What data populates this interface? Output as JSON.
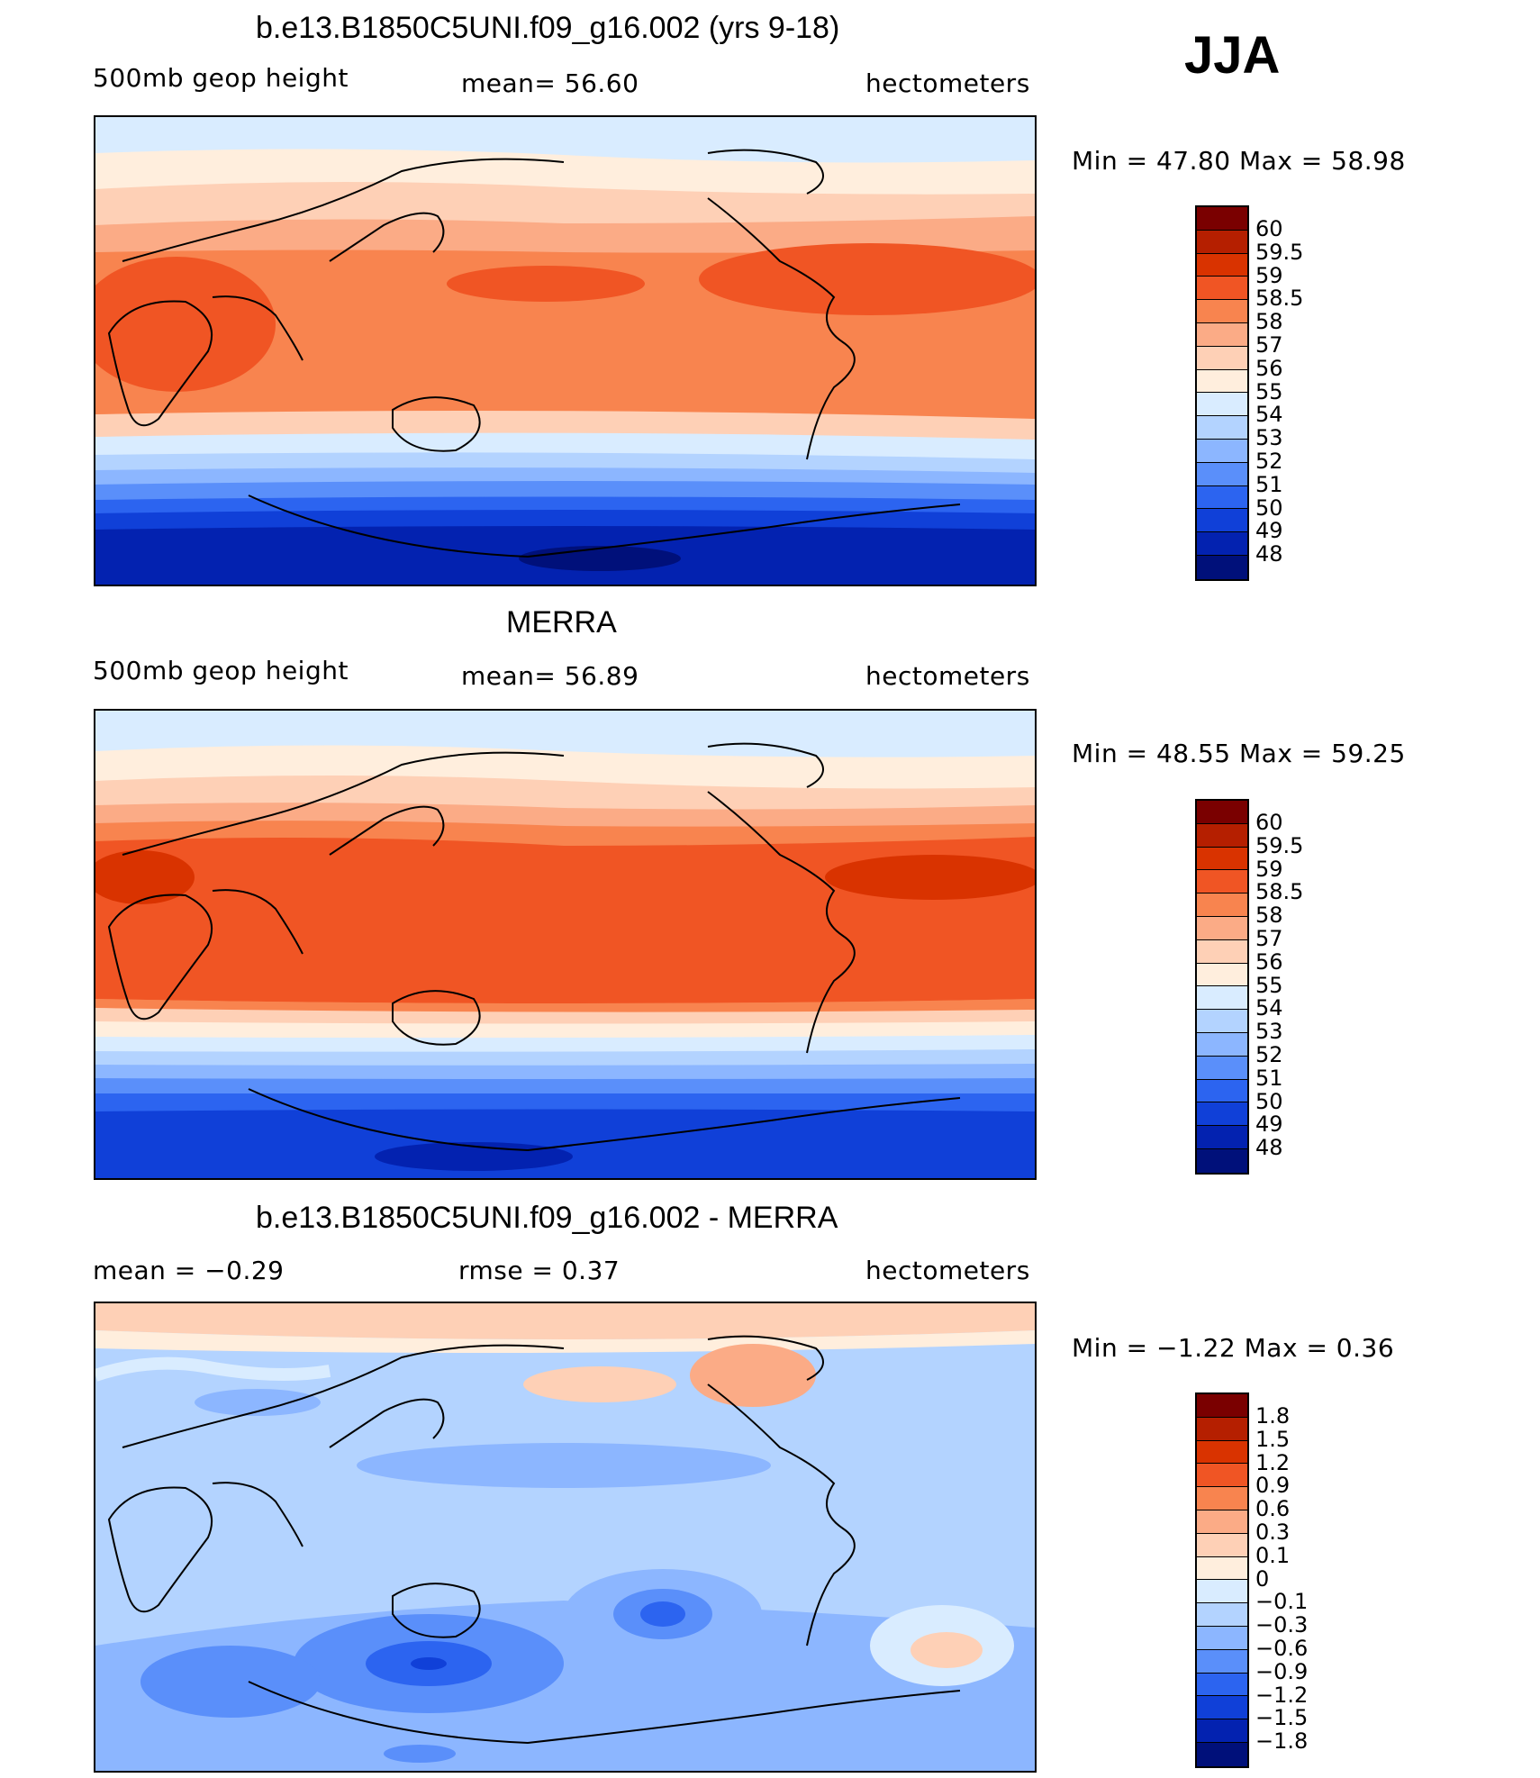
{
  "season": "JJA",
  "panels": [
    {
      "title": "b.e13.B1850C5UNI.f09_g16.002 (yrs 9-18)",
      "left_label": "500mb  geop  height",
      "mid_label": "mean=   56.60",
      "right_label": "hectometers",
      "minmax": "Min  =    47.80  Max  =    58.98"
    },
    {
      "title": "MERRA",
      "left_label": "500mb  geop  height",
      "mid_label": "mean=   56.89",
      "right_label": "hectometers",
      "minmax": "Min  =    48.55  Max  =    59.25"
    },
    {
      "title": "b.e13.B1850C5UNI.f09_g16.002 - MERRA",
      "left_label": "mean  =    −0.29",
      "mid_label": "rmse  =     0.37",
      "right_label": "hectometers",
      "minmax": "Min  =    −1.22  Max  =     0.36"
    }
  ],
  "colorbar_abs": {
    "labels": [
      "60",
      "59.5",
      "59",
      "58.5",
      "58",
      "57",
      "56",
      "55",
      "54",
      "53",
      "52",
      "51",
      "50",
      "49",
      "48"
    ],
    "colors": [
      "#7a0000",
      "#b51f00",
      "#d93300",
      "#f05524",
      "#f8844f",
      "#fbab86",
      "#fed0b6",
      "#ffeedd",
      "#d9ecff",
      "#b3d3ff",
      "#8cb6ff",
      "#5a8ffa",
      "#2c64f0",
      "#1040d8",
      "#0322b0",
      "#00107a"
    ]
  },
  "colorbar_diff": {
    "labels": [
      "1.8",
      "1.5",
      "1.2",
      "0.9",
      "0.6",
      "0.3",
      "0.1",
      "0",
      "−0.1",
      "−0.3",
      "−0.6",
      "−0.9",
      "−1.2",
      "−1.5",
      "−1.8"
    ],
    "colors": [
      "#7a0000",
      "#b51f00",
      "#d93300",
      "#f05524",
      "#f8844f",
      "#fbab86",
      "#fed0b6",
      "#ffeedd",
      "#d9ecff",
      "#b3d3ff",
      "#8cb6ff",
      "#5a8ffa",
      "#2c64f0",
      "#1040d8",
      "#0322b0",
      "#00107a"
    ]
  }
}
